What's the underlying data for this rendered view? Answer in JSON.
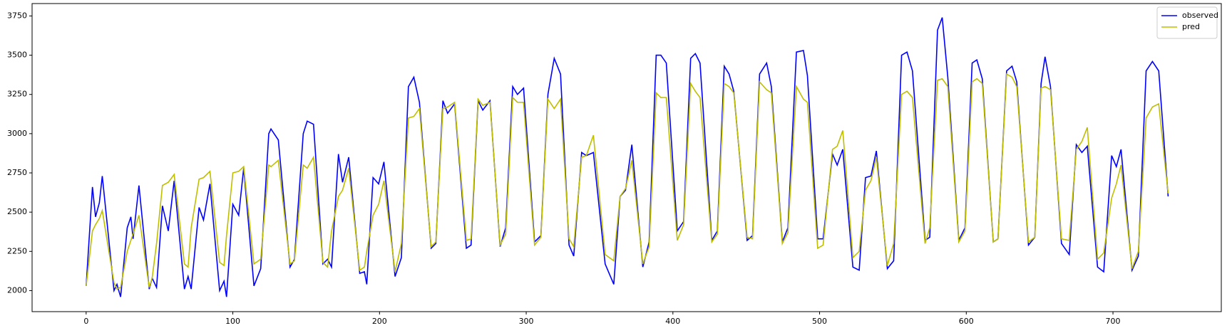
{
  "chart_data": {
    "type": "line",
    "x": [
      0,
      4.3,
      6.4,
      9,
      11,
      19,
      21,
      23.5,
      28,
      30.5,
      32,
      36,
      43,
      45,
      48,
      52,
      56,
      60,
      67,
      69.5,
      71.6,
      77,
      80,
      84.4,
      91,
      94,
      95.7,
      100,
      104,
      107.4,
      114.4,
      119,
      124.5,
      126,
      131,
      139,
      142,
      148,
      150.7,
      155,
      161.4,
      164.6,
      167.3,
      172,
      174.8,
      179,
      186.5,
      189.7,
      191.3,
      195.6,
      199.4,
      203,
      210.6,
      214.9,
      219.7,
      223.4,
      227.2,
      235.2,
      238.4,
      243.2,
      246.4,
      251.2,
      259.2,
      262.4,
      267.2,
      270.4,
      275.3,
      282.2,
      286,
      290.8,
      294,
      298.2,
      305.7,
      310,
      314.8,
      319.1,
      323.4,
      329.2,
      332.4,
      337.8,
      341,
      345.8,
      353.8,
      359.7,
      364,
      367.7,
      372,
      379.5,
      383.8,
      388.6,
      391.8,
      395.5,
      403,
      407.3,
      412.1,
      415.3,
      418.5,
      426.5,
      430.3,
      435,
      438.3,
      441.5,
      450.6,
      454.3,
      459.1,
      463.9,
      467.1,
      474.6,
      478.4,
      484.2,
      489,
      491.7,
      498.7,
      502.4,
      508.8,
      512,
      515.8,
      522.7,
      527,
      531.3,
      535,
      538.7,
      546.2,
      550.5,
      555.9,
      559.6,
      563.3,
      571.9,
      575.1,
      580.4,
      583.6,
      587.4,
      594.9,
      599.1,
      604,
      607.2,
      610.9,
      618.4,
      621.6,
      627.5,
      631.2,
      634.4,
      642.4,
      646.7,
      651,
      653.7,
      657.4,
      664.9,
      670.2,
      675,
      678.8,
      682.5,
      689.5,
      693.7,
      699.1,
      702.3,
      705.5,
      713,
      717.3,
      722.6,
      726.9,
      731.2,
      737.6
    ],
    "series": [
      {
        "name": "observed",
        "color": "#0000ff",
        "values": [
          2030,
          2660,
          2470,
          2560,
          2730,
          2000,
          2040,
          1960,
          2400,
          2470,
          2330,
          2670,
          2010,
          2080,
          2020,
          2540,
          2380,
          2700,
          2010,
          2090,
          2010,
          2530,
          2450,
          2680,
          2000,
          2060,
          1960,
          2550,
          2480,
          2780,
          2030,
          2140,
          3000,
          3030,
          2960,
          2150,
          2200,
          3000,
          3080,
          3060,
          2170,
          2200,
          2150,
          2870,
          2690,
          2850,
          2110,
          2120,
          2040,
          2720,
          2680,
          2820,
          2090,
          2210,
          3300,
          3360,
          3200,
          2270,
          2300,
          3210,
          3130,
          3190,
          2270,
          2290,
          3210,
          3150,
          3210,
          2280,
          2400,
          3300,
          3250,
          3290,
          2310,
          2350,
          3250,
          3480,
          3380,
          2290,
          2220,
          2880,
          2860,
          2880,
          2170,
          2040,
          2600,
          2640,
          2930,
          2150,
          2310,
          3500,
          3500,
          3450,
          2380,
          2440,
          3480,
          3510,
          3450,
          2320,
          2380,
          3430,
          3380,
          3270,
          2320,
          2350,
          3380,
          3450,
          3300,
          2310,
          2400,
          3520,
          3530,
          3370,
          2330,
          2330,
          2870,
          2800,
          2900,
          2150,
          2130,
          2720,
          2730,
          2890,
          2140,
          2190,
          3500,
          3520,
          3400,
          2320,
          2340,
          3660,
          3740,
          3360,
          2320,
          2400,
          3450,
          3470,
          3350,
          2310,
          2330,
          3400,
          3430,
          3330,
          2290,
          2340,
          3320,
          3490,
          3300,
          2300,
          2230,
          2930,
          2880,
          2920,
          2150,
          2120,
          2860,
          2790,
          2900,
          2130,
          2220,
          3400,
          3460,
          3400,
          2600
        ]
      },
      {
        "name": "pred",
        "color": "#bfbf00",
        "values": [
          2030,
          2380,
          2420,
          2460,
          2510,
          2050,
          2010,
          2020,
          2250,
          2320,
          2360,
          2480,
          2020,
          2080,
          2300,
          2670,
          2690,
          2740,
          2170,
          2150,
          2400,
          2710,
          2720,
          2760,
          2180,
          2160,
          2350,
          2750,
          2760,
          2790,
          2170,
          2200,
          2800,
          2790,
          2830,
          2170,
          2190,
          2800,
          2780,
          2850,
          2180,
          2150,
          2380,
          2600,
          2640,
          2780,
          2130,
          2150,
          2250,
          2480,
          2550,
          2700,
          2120,
          2300,
          3100,
          3110,
          3160,
          2280,
          2310,
          3160,
          3170,
          3200,
          2320,
          2330,
          3220,
          3180,
          3200,
          2290,
          2360,
          3230,
          3200,
          3200,
          2290,
          2340,
          3220,
          3160,
          3220,
          2330,
          2280,
          2850,
          2860,
          2990,
          2230,
          2190,
          2600,
          2650,
          2830,
          2170,
          2280,
          3260,
          3230,
          3230,
          2320,
          2420,
          3320,
          3270,
          3230,
          2310,
          2360,
          3320,
          3300,
          3260,
          2340,
          2330,
          3330,
          3280,
          3260,
          2300,
          2370,
          3300,
          3220,
          3200,
          2270,
          2290,
          2900,
          2920,
          3020,
          2210,
          2250,
          2640,
          2700,
          2850,
          2160,
          2300,
          3250,
          3270,
          3230,
          2300,
          2400,
          3340,
          3350,
          3300,
          2310,
          2380,
          3330,
          3350,
          3320,
          2310,
          2330,
          3380,
          3360,
          3300,
          2310,
          2340,
          3290,
          3300,
          3280,
          2330,
          2320,
          2900,
          2950,
          3040,
          2200,
          2240,
          2590,
          2680,
          2800,
          2140,
          2250,
          3100,
          3170,
          3190,
          2620
        ]
      }
    ],
    "xlim": [
      -36.85,
      773.85
    ],
    "xticks": [
      0,
      100,
      200,
      300,
      400,
      500,
      600,
      700
    ],
    "ylim": [
      1866,
      3829
    ],
    "yticks": [
      2000,
      2250,
      2500,
      2750,
      3000,
      3250,
      3500,
      3750
    ],
    "legend": "upper right"
  }
}
